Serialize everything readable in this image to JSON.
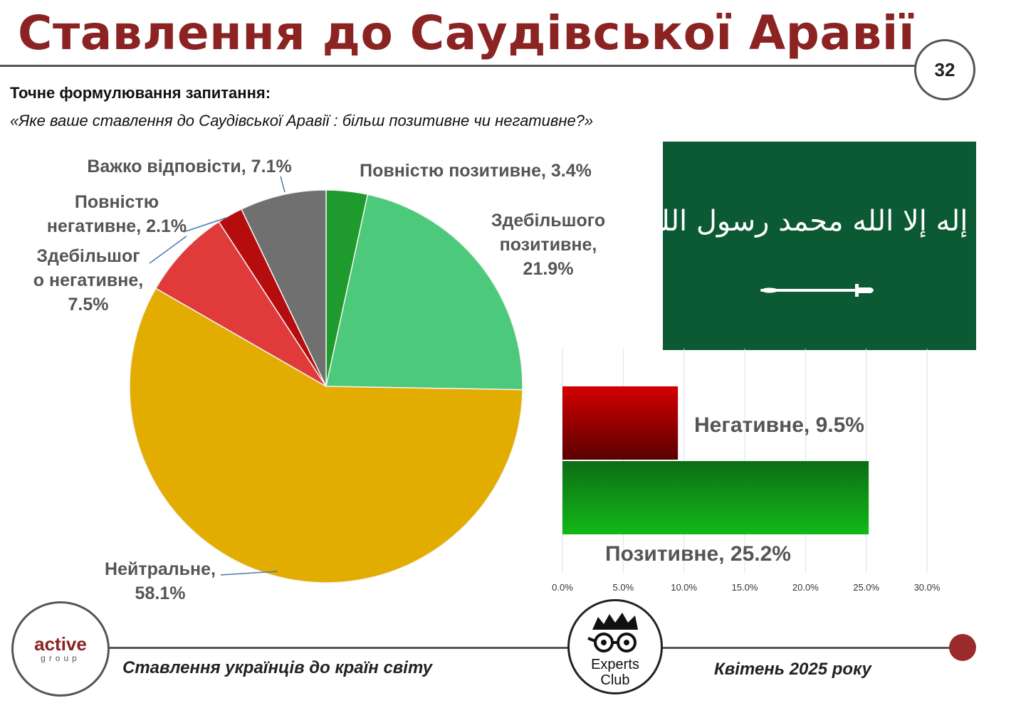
{
  "title": "Ставлення до Саудівської Аравії",
  "page_number": "32",
  "question_label": "Точне формулювання запитання:",
  "question_text": "«Яке ваше ставлення до Саудівської Аравії : більш позитивне чи негативне?»",
  "flag": {
    "shahada": "لا إله إلا الله محمد رسول الله",
    "icon": "saudi-flag-sword-icon"
  },
  "chart_data": [
    {
      "type": "pie",
      "labels": [
        "Повністю позитивне",
        "Здебільшого позитивне",
        "Нейтральне",
        "Здебільшого негативне",
        "Повністю негативне",
        "Важко відповісти"
      ],
      "display_labels": [
        [
          "Повністю позитивне, 3.4%"
        ],
        [
          "Здебільшого",
          "позитивне,",
          "21.9%"
        ],
        [
          "Нейтральне,",
          "58.1%"
        ],
        [
          "Здебільшог",
          "о негативне,",
          "7.5%"
        ],
        [
          "Повністю",
          "негативне, 2.1%"
        ],
        [
          "Важко відповісти, 7.1%"
        ]
      ],
      "values": [
        3.4,
        21.9,
        58.1,
        7.5,
        2.1,
        7.1
      ],
      "unit": "%",
      "colors": [
        "#1f9a2c",
        "#4cc97a",
        "#e2ac00",
        "#e03a3a",
        "#b50d0d",
        "#707070"
      ]
    },
    {
      "type": "bar",
      "orientation": "horizontal",
      "categories": [
        "Негативне",
        "Позитивне"
      ],
      "display_labels": [
        "Негативне, 9.5%",
        "Позитивне, 25.2%"
      ],
      "values": [
        9.5,
        25.2
      ],
      "unit": "%",
      "colors": [
        "#b00000",
        "#119a1a"
      ],
      "xlim": [
        0,
        30
      ],
      "ticks": [
        "0.0%",
        "5.0%",
        "10.0%",
        "15.0%",
        "20.0%",
        "25.0%",
        "30.0%"
      ],
      "grid": true
    }
  ],
  "footer": {
    "left_text": "Ставлення українців до країн світу",
    "right_text": "Квітень 2025 року",
    "logo_left_word1": "active",
    "logo_left_word2": "group",
    "logo_right_word1": "Experts",
    "logo_right_word2": "Club"
  }
}
